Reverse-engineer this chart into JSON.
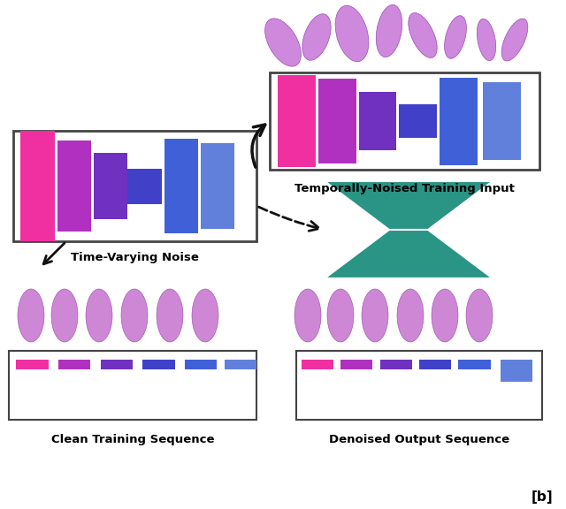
{
  "bg_color": "#ffffff",
  "title_label_b": "[b]",
  "label_time_varying": "Time-Varying Noise",
  "label_noised_input": "Temporally-Noised Training Input",
  "label_clean": "Clean Training Sequence",
  "label_denoised": "Denoised Output Sequence",
  "colors_main": [
    "#F030A0",
    "#B030C0",
    "#7030C0",
    "#4040C8",
    "#4060D8",
    "#6080DC"
  ],
  "teal_color": "#2A9485",
  "box_edge": "#444444",
  "arrow_color": "#111111",
  "figure_width": 6.4,
  "figure_height": 5.76,
  "human_color": "#C87AD0",
  "human_edge": "#9040A8"
}
